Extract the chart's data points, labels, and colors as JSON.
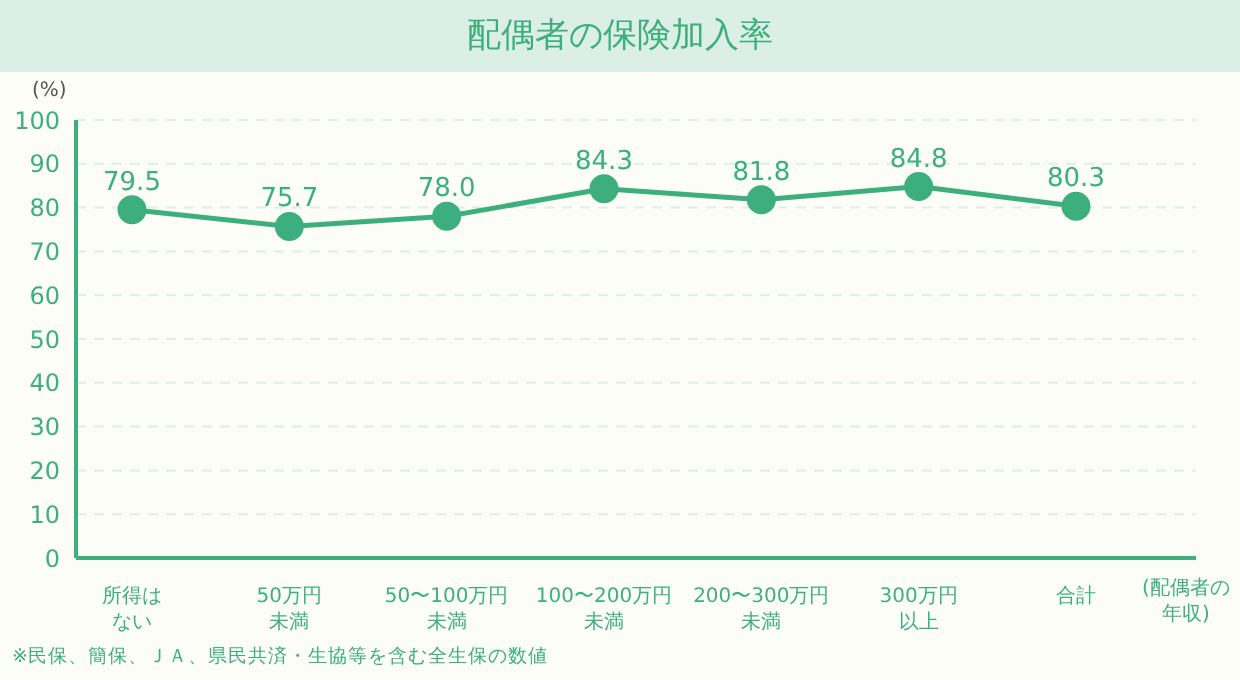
{
  "chart_data": {
    "type": "line",
    "title": "配偶者の保険加入率",
    "ylabel": "(%)",
    "xlabel": "(配偶者の年収)",
    "categories": [
      "所得はない",
      "50万円未満",
      "50〜100万円未満",
      "100〜200万円未満",
      "200〜300万円未満",
      "300万円以上",
      "合計"
    ],
    "series": [
      {
        "color": "#3daf7e",
        "values": [
          79.5,
          75.7,
          78.0,
          84.3,
          81.8,
          84.8,
          80.3
        ],
        "value_labels": [
          "79.5",
          "75.7",
          "78.0",
          "84.3",
          "81.8",
          "84.8",
          "80.3"
        ]
      }
    ],
    "ylim": [
      0,
      100
    ],
    "yticks": [
      0,
      10,
      20,
      30,
      40,
      50,
      60,
      70,
      80,
      90,
      100
    ],
    "grid": "y",
    "marker": "circle",
    "line_style": "solid",
    "data_labels": true,
    "legend": false,
    "annotations": [
      "※民保、簡保、ＪＡ、県民共済・生協等を含む全生保の数値"
    ]
  }
}
